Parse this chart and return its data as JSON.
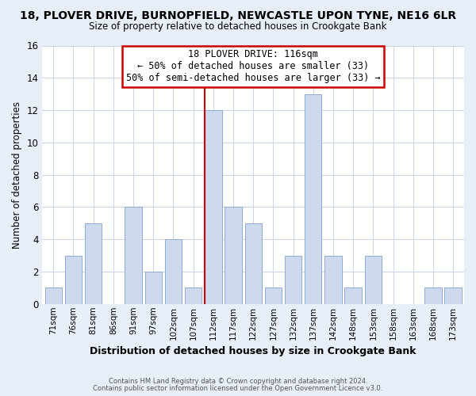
{
  "title": "18, PLOVER DRIVE, BURNOPFIELD, NEWCASTLE UPON TYNE, NE16 6LR",
  "subtitle": "Size of property relative to detached houses in Crookgate Bank",
  "xlabel": "Distribution of detached houses by size in Crookgate Bank",
  "ylabel": "Number of detached properties",
  "bar_labels": [
    "71sqm",
    "76sqm",
    "81sqm",
    "86sqm",
    "91sqm",
    "97sqm",
    "102sqm",
    "107sqm",
    "112sqm",
    "117sqm",
    "122sqm",
    "127sqm",
    "132sqm",
    "137sqm",
    "142sqm",
    "148sqm",
    "153sqm",
    "158sqm",
    "163sqm",
    "168sqm",
    "173sqm"
  ],
  "bar_values": [
    1,
    3,
    5,
    0,
    6,
    2,
    4,
    1,
    12,
    6,
    5,
    1,
    3,
    13,
    3,
    1,
    3,
    0,
    0,
    1,
    1
  ],
  "bar_color": "#ccd9ee",
  "bar_edge_color": "#8faacc",
  "ylim": [
    0,
    16
  ],
  "yticks": [
    0,
    2,
    4,
    6,
    8,
    10,
    12,
    14,
    16
  ],
  "vline_x_index": 8,
  "vline_color": "#cc0000",
  "annotation_title": "18 PLOVER DRIVE: 116sqm",
  "annotation_line1": "← 50% of detached houses are smaller (33)",
  "annotation_line2": "50% of semi-detached houses are larger (33) →",
  "annotation_box_color": "white",
  "annotation_box_edge": "#cc0000",
  "footer1": "Contains HM Land Registry data © Crown copyright and database right 2024.",
  "footer2": "Contains public sector information licensed under the Open Government Licence v3.0.",
  "bg_color": "#e8eef8",
  "plot_bg_color": "white",
  "grid_color": "#c8d4e8"
}
